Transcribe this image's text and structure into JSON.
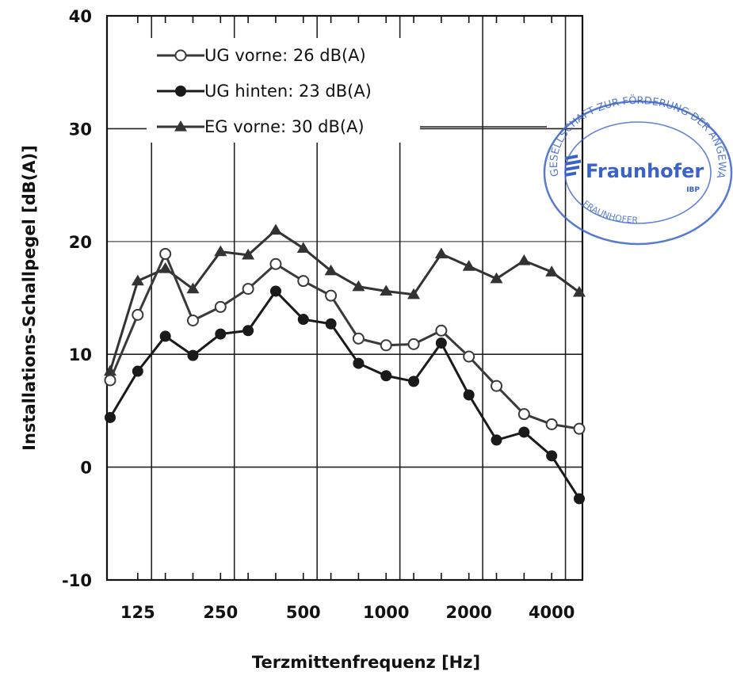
{
  "chart_data": {
    "type": "line",
    "xlabel": "Terzmittenfrequenz [Hz]",
    "ylabel": "Installations-Schallpegel [dB(A)]",
    "ylim": [
      -10,
      40
    ],
    "yticks": [
      "40",
      "30",
      "20",
      "10",
      "0",
      "-10"
    ],
    "x": [
      "100",
      "125",
      "160",
      "200",
      "250",
      "315",
      "400",
      "500",
      "630",
      "800",
      "1000",
      "1250",
      "1600",
      "2000",
      "2500",
      "3150",
      "4000",
      "5000"
    ],
    "xtick_labels": [
      "125",
      "250",
      "500",
      "1000",
      "2000",
      "4000"
    ],
    "grid": true,
    "legend_position": "top-left",
    "series": [
      {
        "name": "UG vorne: 26 dB(A)",
        "marker": "open-circle",
        "color": "#3a3a3a",
        "values": [
          7.7,
          13.5,
          18.9,
          13.0,
          14.2,
          15.8,
          18.0,
          16.5,
          15.2,
          11.4,
          10.8,
          10.9,
          12.1,
          9.8,
          7.2,
          4.7,
          3.8,
          3.4
        ]
      },
      {
        "name": "UG hinten: 23 dB(A)",
        "marker": "filled-circle",
        "color": "#1a1a1a",
        "values": [
          4.4,
          8.5,
          11.6,
          9.9,
          11.8,
          12.1,
          15.6,
          13.1,
          12.7,
          9.2,
          8.1,
          7.6,
          11.0,
          6.4,
          2.4,
          3.1,
          1.0,
          -2.8
        ]
      },
      {
        "name": "EG vorne: 30 dB(A)",
        "marker": "filled-triangle",
        "color": "#333333",
        "values": [
          8.5,
          16.5,
          17.6,
          15.8,
          19.1,
          18.8,
          21.0,
          19.4,
          17.4,
          16.0,
          15.6,
          15.3,
          18.9,
          17.8,
          16.7,
          18.3,
          17.3,
          15.5
        ]
      }
    ]
  },
  "stamp": {
    "ring_text": "GESELLSCHAFT ZUR FÖRDERUNG DER ANGEWANDTEN FORSCHUNG E.V.",
    "brand": "Fraunhofer",
    "sub": "IBP",
    "footer_text": "FRAUNHOFER",
    "color": "#3a63c8"
  }
}
